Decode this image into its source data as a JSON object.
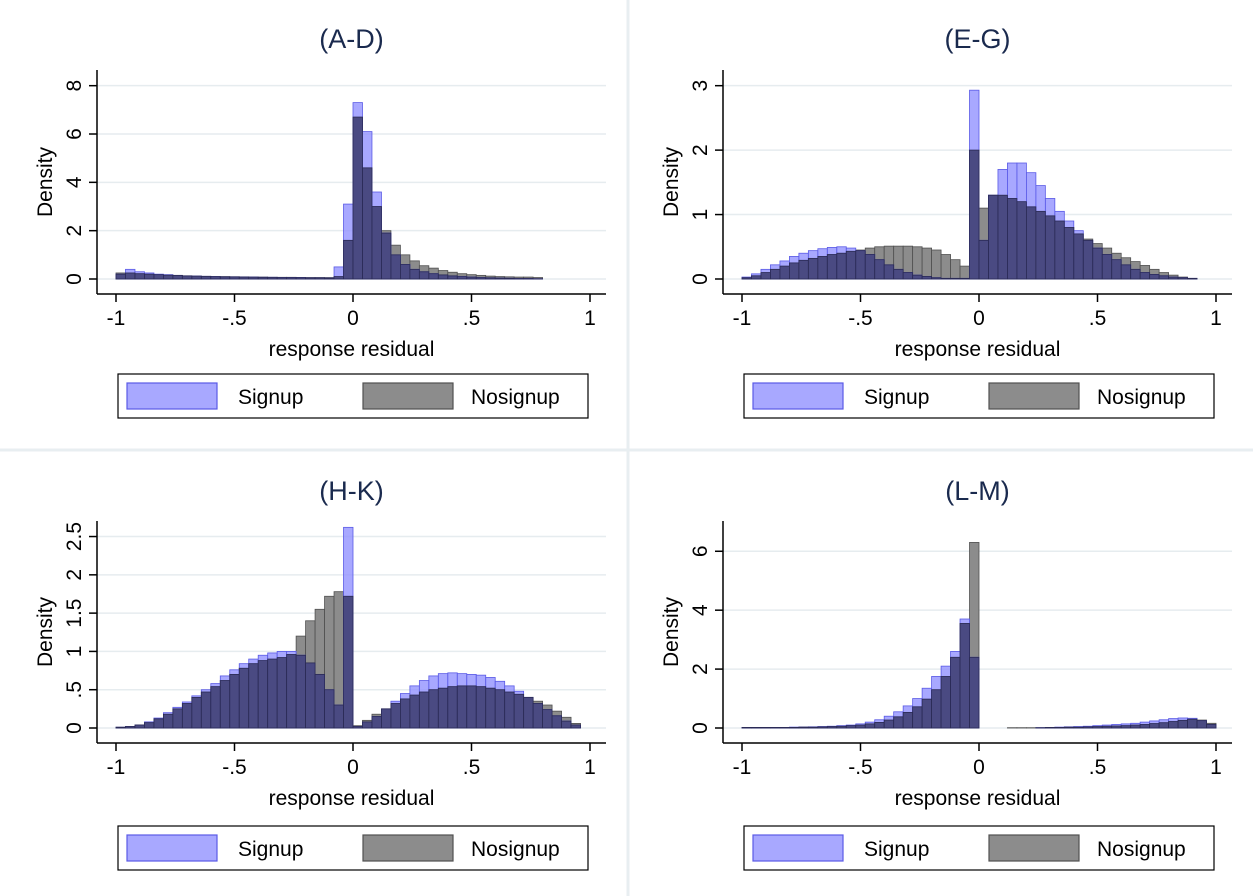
{
  "colors": {
    "signup_fill": "#8f8fff",
    "signup_stroke": "#5a5ae6",
    "nosignup_fill": "#8c8c8c",
    "nosignup_stroke": "#505050",
    "overlap_fill": "#44447a",
    "grid": "#e6ecef",
    "divider": "#e8eef1",
    "title": "#1a2a4e"
  },
  "legend": {
    "signup_label": "Signup",
    "nosignup_label": "Nosignup",
    "placement": "bottom"
  },
  "chart_data": [
    {
      "type": "bar",
      "title": "(A-D)",
      "xlabel": "response residual",
      "ylabel": "Density",
      "xlim": [
        -1,
        1
      ],
      "ylim": [
        0,
        8
      ],
      "xticks": [
        "-1",
        "-.5",
        "0",
        ".5",
        "1"
      ],
      "yticks": [
        "0",
        "2",
        "4",
        "6",
        "8"
      ],
      "grid": true,
      "series": [
        {
          "name": "Signup",
          "bin_width": 0.04,
          "x": [
            -0.98,
            -0.94,
            -0.9,
            -0.86,
            -0.82,
            -0.78,
            -0.74,
            -0.7,
            -0.66,
            -0.62,
            -0.58,
            -0.54,
            -0.5,
            -0.46,
            -0.42,
            -0.38,
            -0.34,
            -0.3,
            -0.26,
            -0.22,
            -0.18,
            -0.14,
            -0.1,
            -0.06,
            -0.02,
            0.02,
            0.06,
            0.1,
            0.14,
            0.18,
            0.22,
            0.26,
            0.3,
            0.34,
            0.38,
            0.42,
            0.46,
            0.5,
            0.54,
            0.58,
            0.62,
            0.66,
            0.7,
            0.74,
            0.78
          ],
          "values": [
            0.2,
            0.4,
            0.3,
            0.25,
            0.2,
            0.18,
            0.15,
            0.13,
            0.12,
            0.11,
            0.1,
            0.09,
            0.09,
            0.08,
            0.08,
            0.07,
            0.07,
            0.06,
            0.06,
            0.06,
            0.05,
            0.05,
            0.04,
            0.5,
            3.1,
            7.3,
            6.1,
            3.6,
            1.9,
            1.0,
            0.6,
            0.4,
            0.3,
            0.22,
            0.17,
            0.13,
            0.1,
            0.08,
            0.06,
            0.05,
            0.04,
            0.03,
            0.02,
            0.02,
            0.01
          ]
        },
        {
          "name": "Nosignup",
          "bin_width": 0.04,
          "x": [
            -0.98,
            -0.94,
            -0.9,
            -0.86,
            -0.82,
            -0.78,
            -0.74,
            -0.7,
            -0.66,
            -0.62,
            -0.58,
            -0.54,
            -0.5,
            -0.46,
            -0.42,
            -0.38,
            -0.34,
            -0.3,
            -0.26,
            -0.22,
            -0.18,
            -0.14,
            -0.1,
            -0.06,
            -0.02,
            0.02,
            0.06,
            0.1,
            0.14,
            0.18,
            0.22,
            0.26,
            0.3,
            0.34,
            0.38,
            0.42,
            0.46,
            0.5,
            0.54,
            0.58,
            0.62,
            0.66,
            0.7,
            0.74,
            0.78
          ],
          "values": [
            0.25,
            0.25,
            0.22,
            0.2,
            0.18,
            0.16,
            0.15,
            0.13,
            0.12,
            0.11,
            0.1,
            0.1,
            0.09,
            0.09,
            0.08,
            0.08,
            0.07,
            0.07,
            0.07,
            0.06,
            0.06,
            0.06,
            0.06,
            0.1,
            1.6,
            6.7,
            4.6,
            3.0,
            2.0,
            1.4,
            1.0,
            0.75,
            0.55,
            0.45,
            0.35,
            0.28,
            0.22,
            0.18,
            0.15,
            0.12,
            0.1,
            0.09,
            0.08,
            0.08,
            0.06
          ]
        }
      ]
    },
    {
      "type": "bar",
      "title": "(E-G)",
      "xlabel": "response residual",
      "ylabel": "Density",
      "xlim": [
        -1,
        1
      ],
      "ylim": [
        0,
        3
      ],
      "xticks": [
        "-1",
        "-.5",
        "0",
        ".5",
        "1"
      ],
      "yticks": [
        "0",
        "1",
        "2",
        "3"
      ],
      "grid": true,
      "series": [
        {
          "name": "Signup",
          "bin_width": 0.04,
          "x": [
            -0.98,
            -0.94,
            -0.9,
            -0.86,
            -0.82,
            -0.78,
            -0.74,
            -0.7,
            -0.66,
            -0.62,
            -0.58,
            -0.54,
            -0.5,
            -0.46,
            -0.42,
            -0.38,
            -0.34,
            -0.3,
            -0.26,
            -0.22,
            -0.18,
            -0.14,
            -0.1,
            -0.06,
            -0.02,
            0.02,
            0.06,
            0.1,
            0.14,
            0.18,
            0.22,
            0.26,
            0.3,
            0.34,
            0.38,
            0.42,
            0.46,
            0.5,
            0.54,
            0.58,
            0.62,
            0.66,
            0.7,
            0.74,
            0.78,
            0.82,
            0.86,
            0.9
          ],
          "values": [
            0.03,
            0.08,
            0.15,
            0.22,
            0.28,
            0.35,
            0.4,
            0.44,
            0.47,
            0.49,
            0.5,
            0.48,
            0.44,
            0.38,
            0.3,
            0.22,
            0.15,
            0.1,
            0.06,
            0.04,
            0.02,
            0.01,
            0.01,
            0.01,
            2.93,
            0.6,
            1.3,
            1.7,
            1.8,
            1.8,
            1.65,
            1.45,
            1.25,
            1.05,
            0.9,
            0.75,
            0.6,
            0.48,
            0.38,
            0.3,
            0.22,
            0.15,
            0.1,
            0.07,
            0.05,
            0.03,
            0.02,
            0.01
          ]
        },
        {
          "name": "Nosignup",
          "bin_width": 0.04,
          "x": [
            -0.98,
            -0.94,
            -0.9,
            -0.86,
            -0.82,
            -0.78,
            -0.74,
            -0.7,
            -0.66,
            -0.62,
            -0.58,
            -0.54,
            -0.5,
            -0.46,
            -0.42,
            -0.38,
            -0.34,
            -0.3,
            -0.26,
            -0.22,
            -0.18,
            -0.14,
            -0.1,
            -0.06,
            -0.02,
            0.02,
            0.06,
            0.1,
            0.14,
            0.18,
            0.22,
            0.26,
            0.3,
            0.34,
            0.38,
            0.42,
            0.46,
            0.5,
            0.54,
            0.58,
            0.62,
            0.66,
            0.7,
            0.74,
            0.78,
            0.82,
            0.86,
            0.9
          ],
          "values": [
            0.02,
            0.05,
            0.1,
            0.15,
            0.2,
            0.25,
            0.29,
            0.32,
            0.35,
            0.38,
            0.4,
            0.43,
            0.45,
            0.48,
            0.5,
            0.51,
            0.51,
            0.51,
            0.5,
            0.48,
            0.45,
            0.38,
            0.3,
            0.2,
            2.0,
            1.1,
            1.3,
            1.3,
            1.25,
            1.2,
            1.12,
            1.05,
            0.98,
            0.9,
            0.8,
            0.7,
            0.62,
            0.55,
            0.48,
            0.4,
            0.33,
            0.27,
            0.21,
            0.15,
            0.1,
            0.06,
            0.03,
            0.01
          ]
        }
      ]
    },
    {
      "type": "bar",
      "title": "(H-K)",
      "xlabel": "response residual",
      "ylabel": "Density",
      "xlim": [
        -1,
        1
      ],
      "ylim": [
        0,
        2.5
      ],
      "xticks": [
        "-1",
        "-.5",
        "0",
        ".5",
        "1"
      ],
      "yticks": [
        "0",
        ".5",
        "1",
        "1.5",
        "2",
        "2.5"
      ],
      "grid": true,
      "series": [
        {
          "name": "Signup",
          "bin_width": 0.04,
          "x": [
            -0.98,
            -0.94,
            -0.9,
            -0.86,
            -0.82,
            -0.78,
            -0.74,
            -0.7,
            -0.66,
            -0.62,
            -0.58,
            -0.54,
            -0.5,
            -0.46,
            -0.42,
            -0.38,
            -0.34,
            -0.3,
            -0.26,
            -0.22,
            -0.18,
            -0.14,
            -0.1,
            -0.06,
            -0.02,
            0.02,
            0.06,
            0.1,
            0.14,
            0.18,
            0.22,
            0.26,
            0.3,
            0.34,
            0.38,
            0.42,
            0.46,
            0.5,
            0.54,
            0.58,
            0.62,
            0.66,
            0.7,
            0.74,
            0.78,
            0.82,
            0.86,
            0.9,
            0.94
          ],
          "values": [
            0.01,
            0.02,
            0.04,
            0.08,
            0.13,
            0.2,
            0.27,
            0.34,
            0.42,
            0.5,
            0.58,
            0.68,
            0.76,
            0.84,
            0.9,
            0.95,
            0.98,
            1.0,
            1.0,
            0.95,
            0.85,
            0.7,
            0.5,
            0.3,
            2.62,
            0.02,
            0.08,
            0.15,
            0.25,
            0.35,
            0.45,
            0.55,
            0.62,
            0.68,
            0.71,
            0.72,
            0.71,
            0.7,
            0.69,
            0.66,
            0.61,
            0.55,
            0.48,
            0.4,
            0.32,
            0.24,
            0.16,
            0.09,
            0.04
          ]
        },
        {
          "name": "Nosignup",
          "bin_width": 0.04,
          "x": [
            -0.98,
            -0.94,
            -0.9,
            -0.86,
            -0.82,
            -0.78,
            -0.74,
            -0.7,
            -0.66,
            -0.62,
            -0.58,
            -0.54,
            -0.5,
            -0.46,
            -0.42,
            -0.38,
            -0.34,
            -0.3,
            -0.26,
            -0.22,
            -0.18,
            -0.14,
            -0.1,
            -0.06,
            -0.02,
            0.02,
            0.06,
            0.1,
            0.14,
            0.18,
            0.22,
            0.26,
            0.3,
            0.34,
            0.38,
            0.42,
            0.46,
            0.5,
            0.54,
            0.58,
            0.62,
            0.66,
            0.7,
            0.74,
            0.78,
            0.82,
            0.86,
            0.9,
            0.94
          ],
          "values": [
            0.01,
            0.02,
            0.04,
            0.07,
            0.12,
            0.18,
            0.25,
            0.32,
            0.4,
            0.47,
            0.54,
            0.62,
            0.7,
            0.78,
            0.84,
            0.88,
            0.9,
            0.92,
            0.96,
            1.2,
            1.4,
            1.55,
            1.72,
            1.78,
            1.72,
            0.03,
            0.1,
            0.18,
            0.25,
            0.32,
            0.38,
            0.43,
            0.47,
            0.5,
            0.52,
            0.54,
            0.55,
            0.55,
            0.54,
            0.52,
            0.5,
            0.47,
            0.44,
            0.4,
            0.35,
            0.3,
            0.22,
            0.14,
            0.06
          ]
        }
      ]
    },
    {
      "type": "bar",
      "title": "(L-M)",
      "xlabel": "response residual",
      "ylabel": "Density",
      "xlim": [
        -1,
        1
      ],
      "ylim": [
        0,
        6.5
      ],
      "xticks": [
        "-1",
        "-.5",
        "0",
        ".5",
        "1"
      ],
      "yticks": [
        "0",
        "2",
        "4",
        "6"
      ],
      "grid": true,
      "series": [
        {
          "name": "Signup",
          "bin_width": 0.04,
          "x": [
            -0.98,
            -0.94,
            -0.9,
            -0.86,
            -0.82,
            -0.78,
            -0.74,
            -0.7,
            -0.66,
            -0.62,
            -0.58,
            -0.54,
            -0.5,
            -0.46,
            -0.42,
            -0.38,
            -0.34,
            -0.3,
            -0.26,
            -0.22,
            -0.18,
            -0.14,
            -0.1,
            -0.06,
            -0.02,
            0.02,
            0.06,
            0.1,
            0.14,
            0.18,
            0.22,
            0.26,
            0.3,
            0.34,
            0.38,
            0.42,
            0.46,
            0.5,
            0.54,
            0.58,
            0.62,
            0.66,
            0.7,
            0.74,
            0.78,
            0.82,
            0.86,
            0.9,
            0.94,
            0.98
          ],
          "values": [
            0.02,
            0.02,
            0.02,
            0.02,
            0.02,
            0.03,
            0.03,
            0.04,
            0.05,
            0.06,
            0.08,
            0.1,
            0.14,
            0.2,
            0.28,
            0.4,
            0.55,
            0.75,
            1.0,
            1.35,
            1.75,
            2.1,
            2.6,
            3.7,
            2.4,
            0.0,
            0.0,
            0.0,
            0.0,
            0.0,
            0.0,
            0.01,
            0.02,
            0.03,
            0.04,
            0.05,
            0.06,
            0.08,
            0.1,
            0.12,
            0.14,
            0.16,
            0.2,
            0.24,
            0.28,
            0.32,
            0.34,
            0.33,
            0.25,
            0.12
          ]
        },
        {
          "name": "Nosignup",
          "bin_width": 0.04,
          "x": [
            -0.98,
            -0.94,
            -0.9,
            -0.86,
            -0.82,
            -0.78,
            -0.74,
            -0.7,
            -0.66,
            -0.62,
            -0.58,
            -0.54,
            -0.5,
            -0.46,
            -0.42,
            -0.38,
            -0.34,
            -0.3,
            -0.26,
            -0.22,
            -0.18,
            -0.14,
            -0.1,
            -0.06,
            -0.02,
            0.02,
            0.06,
            0.1,
            0.14,
            0.18,
            0.22,
            0.26,
            0.3,
            0.34,
            0.38,
            0.42,
            0.46,
            0.5,
            0.54,
            0.58,
            0.62,
            0.66,
            0.7,
            0.74,
            0.78,
            0.82,
            0.86,
            0.9,
            0.94,
            0.98
          ],
          "values": [
            0.02,
            0.02,
            0.02,
            0.02,
            0.02,
            0.02,
            0.03,
            0.03,
            0.04,
            0.05,
            0.06,
            0.08,
            0.1,
            0.14,
            0.19,
            0.27,
            0.38,
            0.53,
            0.72,
            0.98,
            1.3,
            1.75,
            2.4,
            3.55,
            6.3,
            0.0,
            0.0,
            0.0,
            0.01,
            0.01,
            0.01,
            0.01,
            0.02,
            0.02,
            0.03,
            0.03,
            0.04,
            0.05,
            0.06,
            0.07,
            0.08,
            0.1,
            0.12,
            0.15,
            0.18,
            0.22,
            0.26,
            0.3,
            0.27,
            0.16
          ]
        }
      ]
    }
  ]
}
